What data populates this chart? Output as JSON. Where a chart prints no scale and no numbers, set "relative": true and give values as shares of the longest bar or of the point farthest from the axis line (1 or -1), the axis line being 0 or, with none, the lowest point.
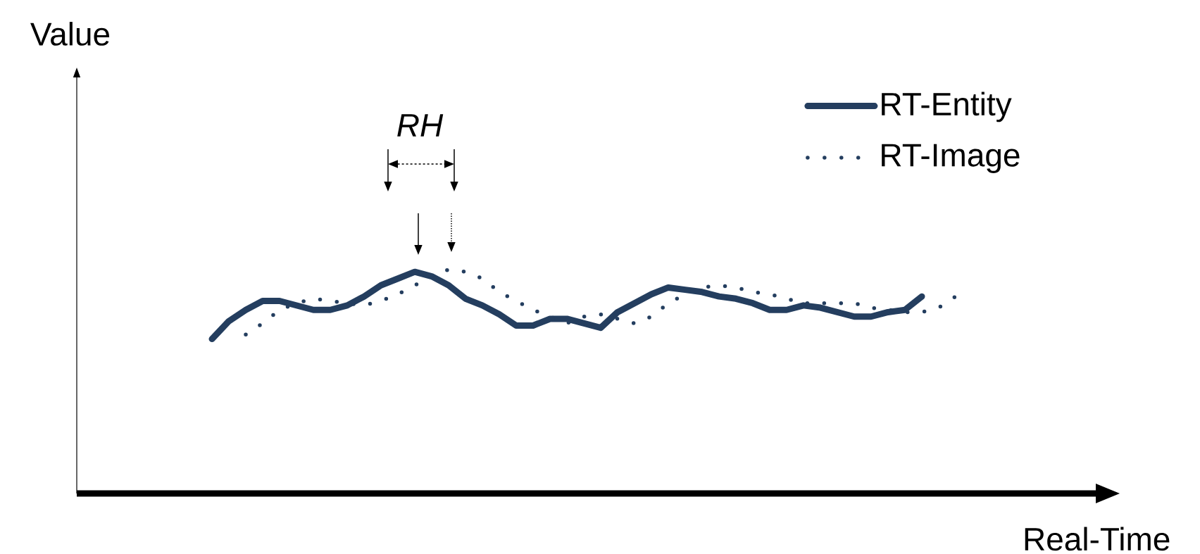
{
  "chart_data": {
    "type": "line",
    "relative": true,
    "xlabel": "Real-Time",
    "legend": "top right",
    "marker": "none",
    "annotations": [
      "RH",
      "Value"
    ],
    "categories": [
      null,
      null,
      null,
      null,
      null,
      null,
      null,
      null,
      null,
      null,
      null,
      null,
      null,
      null,
      null,
      null,
      null,
      null,
      null,
      null,
      null,
      null,
      null,
      null,
      null,
      null,
      null,
      null,
      null,
      null,
      null,
      null,
      null,
      null,
      null,
      null,
      null,
      null,
      null,
      null,
      null,
      null,
      null,
      null,
      null
    ],
    "series": [
      {
        "name": "RT-Entity",
        "color": "#243e5f",
        "line_style": "solid",
        "values": [
          0.69,
          0.77,
          0.82,
          0.86,
          0.86,
          0.84,
          0.82,
          0.82,
          0.84,
          0.88,
          0.93,
          0.96,
          0.99,
          0.97,
          0.93,
          0.87,
          0.84,
          0.8,
          0.75,
          0.75,
          0.78,
          0.78,
          0.76,
          0.74,
          0.81,
          0.85,
          0.89,
          0.92,
          0.91,
          0.9,
          0.88,
          0.87,
          0.85,
          0.82,
          0.82,
          0.84,
          0.83,
          0.81,
          0.79,
          0.79,
          0.81,
          0.82,
          0.88,
          null,
          null
        ]
      },
      {
        "name": "RT-Image",
        "color": "#243e5f",
        "line_style": "dotted",
        "values": [
          null,
          null,
          0.71,
          0.76,
          0.82,
          0.85,
          0.87,
          0.86,
          0.85,
          0.84,
          0.86,
          0.89,
          0.93,
          0.97,
          1.0,
          0.99,
          0.96,
          0.9,
          0.86,
          0.82,
          0.79,
          0.76,
          0.79,
          0.8,
          0.78,
          0.76,
          0.79,
          0.85,
          0.89,
          0.92,
          0.93,
          0.92,
          0.9,
          0.89,
          0.87,
          0.85,
          0.85,
          0.85,
          0.85,
          0.83,
          0.82,
          0.81,
          0.81,
          0.83,
          0.88
        ]
      }
    ]
  }
}
